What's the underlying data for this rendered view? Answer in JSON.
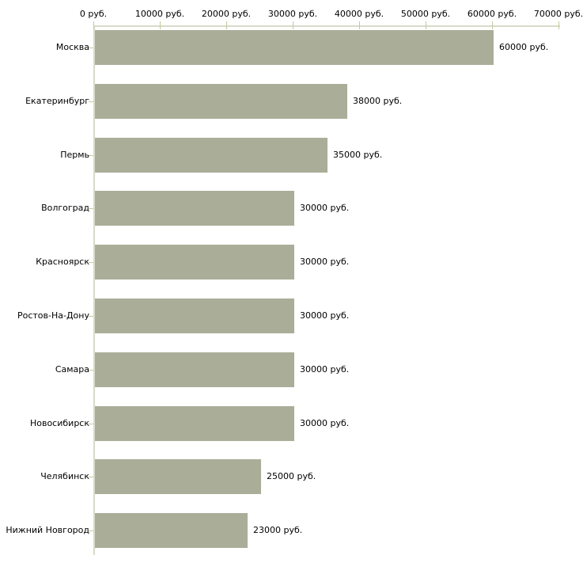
{
  "chart_data": {
    "type": "bar",
    "orientation": "horizontal",
    "title": "",
    "categories": [
      "Москва",
      "Екатеринбург",
      "Пермь",
      "Волгоград",
      "Красноярск",
      "Ростов-На-Дону",
      "Самара",
      "Новосибирск",
      "Челябинск",
      "Нижний Новгород"
    ],
    "values": [
      60000,
      38000,
      35000,
      30000,
      30000,
      30000,
      30000,
      30000,
      25000,
      23000
    ],
    "value_labels": [
      "60000 руб.",
      "38000 руб.",
      "35000 руб.",
      "30000 руб.",
      "30000 руб.",
      "30000 руб.",
      "30000 руб.",
      "30000 руб.",
      "25000 руб.",
      "23000 руб."
    ],
    "x_axis": {
      "position": "top",
      "range": [
        0,
        70000
      ],
      "ticks": [
        0,
        10000,
        20000,
        30000,
        40000,
        50000,
        60000,
        70000
      ],
      "tick_labels": [
        "0 руб.",
        "10000 руб.",
        "20000 руб.",
        "30000 руб.",
        "40000 руб.",
        "50000 руб.",
        "60000 руб.",
        "70000 руб."
      ]
    },
    "grid": false,
    "legend": false,
    "colors": {
      "bar_fill": "#aaae98",
      "axis_line": "#d8dbca",
      "tick_mark": "#c6c9a0",
      "text": "#000000",
      "background": "#ffffff"
    }
  }
}
